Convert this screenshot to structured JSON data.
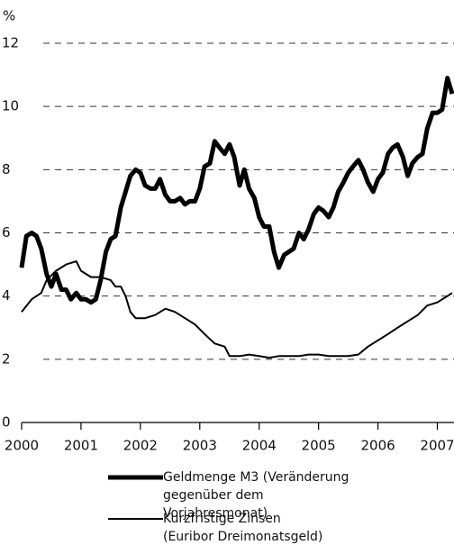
{
  "chart_data": {
    "type": "line",
    "y_unit": "%",
    "xlim": [
      2000,
      2007.25
    ],
    "xticks": [
      2000,
      2001,
      2002,
      2003,
      2004,
      2005,
      2006,
      2007
    ],
    "ylim": [
      0,
      12
    ],
    "yticks": [
      0,
      2,
      4,
      6,
      8,
      10,
      12
    ],
    "grid": true,
    "series": [
      {
        "name": "Geldmenge M3 (Veränderung gegenüber dem Vorjahresmonat)",
        "color": "#000000",
        "width": 5,
        "x": [
          2000.0,
          2000.08,
          2000.17,
          2000.25,
          2000.33,
          2000.42,
          2000.5,
          2000.58,
          2000.67,
          2000.75,
          2000.83,
          2000.92,
          2001.0,
          2001.08,
          2001.17,
          2001.25,
          2001.33,
          2001.42,
          2001.5,
          2001.58,
          2001.67,
          2001.75,
          2001.83,
          2001.92,
          2002.0,
          2002.08,
          2002.17,
          2002.25,
          2002.33,
          2002.42,
          2002.5,
          2002.58,
          2002.67,
          2002.75,
          2002.83,
          2002.92,
          2003.0,
          2003.08,
          2003.17,
          2003.25,
          2003.33,
          2003.42,
          2003.5,
          2003.58,
          2003.67,
          2003.75,
          2003.83,
          2003.92,
          2004.0,
          2004.08,
          2004.17,
          2004.25,
          2004.33,
          2004.42,
          2004.5,
          2004.58,
          2004.67,
          2004.75,
          2004.83,
          2004.92,
          2005.0,
          2005.08,
          2005.17,
          2005.25,
          2005.33,
          2005.42,
          2005.5,
          2005.58,
          2005.67,
          2005.75,
          2005.83,
          2005.92,
          2006.0,
          2006.08,
          2006.17,
          2006.25,
          2006.33,
          2006.42,
          2006.5,
          2006.58,
          2006.67,
          2006.75,
          2006.83,
          2006.92,
          2007.0,
          2007.08,
          2007.17,
          2007.25
        ],
        "values": [
          4.9,
          5.9,
          6.0,
          5.9,
          5.5,
          4.7,
          4.3,
          4.7,
          4.2,
          4.2,
          3.9,
          4.1,
          3.9,
          3.9,
          3.8,
          3.9,
          4.5,
          5.4,
          5.8,
          5.9,
          6.8,
          7.3,
          7.8,
          8.0,
          7.9,
          7.5,
          7.4,
          7.4,
          7.7,
          7.2,
          7.0,
          7.0,
          7.1,
          6.9,
          7.0,
          7.0,
          7.4,
          8.1,
          8.2,
          8.9,
          8.7,
          8.5,
          8.8,
          8.4,
          7.5,
          8.0,
          7.4,
          7.1,
          6.5,
          6.2,
          6.2,
          5.4,
          4.9,
          5.3,
          5.4,
          5.5,
          6.0,
          5.8,
          6.1,
          6.6,
          6.8,
          6.7,
          6.5,
          6.8,
          7.3,
          7.6,
          7.9,
          8.1,
          8.3,
          8.0,
          7.6,
          7.3,
          7.7,
          7.9,
          8.5,
          8.7,
          8.8,
          8.4,
          7.8,
          8.2,
          8.4,
          8.5,
          9.3,
          9.8,
          9.8,
          9.9,
          10.9,
          10.4
        ]
      },
      {
        "name": "Kurzfristige Zinsen (Euribor Dreimonatsgeld)",
        "color": "#000000",
        "width": 2,
        "x": [
          2000.0,
          2000.17,
          2000.33,
          2000.42,
          2000.58,
          2000.75,
          2000.92,
          2001.0,
          2001.17,
          2001.33,
          2001.5,
          2001.58,
          2001.67,
          2001.75,
          2001.83,
          2001.92,
          2002.08,
          2002.25,
          2002.42,
          2002.58,
          2002.75,
          2002.92,
          2003.08,
          2003.25,
          2003.42,
          2003.5,
          2003.67,
          2003.83,
          2004.0,
          2004.17,
          2004.33,
          2004.5,
          2004.67,
          2004.83,
          2005.0,
          2005.17,
          2005.33,
          2005.5,
          2005.67,
          2005.83,
          2006.0,
          2006.17,
          2006.33,
          2006.5,
          2006.67,
          2006.83,
          2007.0,
          2007.17,
          2007.25
        ],
        "values": [
          3.5,
          3.9,
          4.1,
          4.5,
          4.8,
          5.0,
          5.1,
          4.8,
          4.6,
          4.6,
          4.5,
          4.3,
          4.3,
          4.0,
          3.5,
          3.3,
          3.3,
          3.4,
          3.6,
          3.5,
          3.3,
          3.1,
          2.8,
          2.5,
          2.4,
          2.1,
          2.1,
          2.15,
          2.1,
          2.05,
          2.1,
          2.1,
          2.1,
          2.15,
          2.15,
          2.1,
          2.1,
          2.1,
          2.15,
          2.4,
          2.6,
          2.8,
          3.0,
          3.2,
          3.4,
          3.7,
          3.8,
          4.0,
          4.1
        ]
      }
    ]
  }
}
